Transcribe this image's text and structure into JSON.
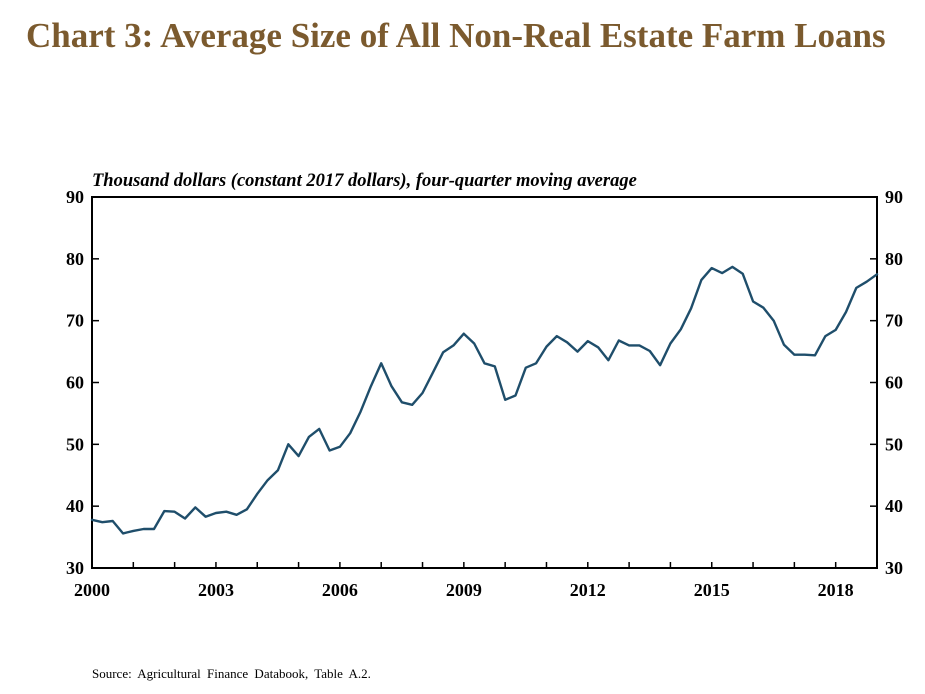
{
  "title": "Chart 3: Average Size of All Non-Real Estate Farm Loans",
  "chart_data": {
    "type": "line",
    "title": "Chart 3: Average Size of All Non-Real Estate Farm Loans",
    "subtitle": "Thousand dollars (constant 2017 dollars), four-quarter moving average",
    "ylim": [
      30,
      90
    ],
    "yticks": [
      "30",
      "40",
      "50",
      "60",
      "70",
      "80",
      "90"
    ],
    "xlim": [
      2000,
      2019
    ],
    "xticks": [
      "2000",
      "2003",
      "2006",
      "2009",
      "2012",
      "2015",
      "2018"
    ],
    "grid": false,
    "line_color": "#1f4e6b",
    "series": [
      {
        "x": [
          2000.0,
          2000.25,
          2000.5,
          2000.75,
          2001.0,
          2001.25,
          2001.5,
          2001.75,
          2002.0,
          2002.25,
          2002.5,
          2002.75,
          2003.0,
          2003.25,
          2003.5,
          2003.75,
          2004.0,
          2004.25,
          2004.5,
          2004.75,
          2005.0,
          2005.25,
          2005.5,
          2005.75,
          2006.0,
          2006.25,
          2006.5,
          2006.75,
          2007.0,
          2007.25,
          2007.5,
          2007.75,
          2008.0,
          2008.25,
          2008.5,
          2008.75,
          2009.0,
          2009.25,
          2009.5,
          2009.75,
          2010.0,
          2010.25,
          2010.5,
          2010.75,
          2011.0,
          2011.25,
          2011.5,
          2011.75,
          2012.0,
          2012.25,
          2012.5,
          2012.75,
          2013.0,
          2013.25,
          2013.5,
          2013.75,
          2014.0,
          2014.25,
          2014.5,
          2014.75,
          2015.0,
          2015.25,
          2015.5,
          2015.75,
          2016.0,
          2016.25,
          2016.5,
          2016.75,
          2017.0,
          2017.25,
          2017.5,
          2017.75,
          2018.0,
          2018.25,
          2018.5,
          2018.75,
          2019.0
        ],
        "values": [
          37.8,
          37.4,
          37.6,
          35.6,
          36.0,
          36.3,
          36.3,
          39.2,
          39.1,
          38.0,
          39.8,
          38.3,
          38.9,
          39.1,
          38.6,
          39.5,
          42.0,
          44.2,
          45.8,
          50.0,
          48.1,
          51.2,
          52.5,
          49.0,
          49.6,
          51.8,
          55.3,
          59.4,
          63.1,
          59.4,
          56.8,
          56.4,
          58.3,
          61.6,
          64.9,
          66.0,
          67.9,
          66.3,
          63.1,
          62.6,
          57.2,
          57.9,
          62.4,
          63.1,
          65.8,
          67.5,
          66.5,
          65.0,
          66.7,
          65.7,
          63.6,
          66.8,
          66.0,
          66.0,
          65.1,
          62.8,
          66.3,
          68.6,
          72.0,
          76.6,
          78.5,
          77.7,
          78.7,
          77.6,
          73.1,
          72.1,
          70.0,
          66.1,
          64.5,
          64.5,
          64.4,
          67.5,
          68.5,
          71.4,
          75.3,
          76.3,
          77.5
        ]
      }
    ]
  },
  "source": "Source: Agricultural Finance Databook, Table A.2."
}
